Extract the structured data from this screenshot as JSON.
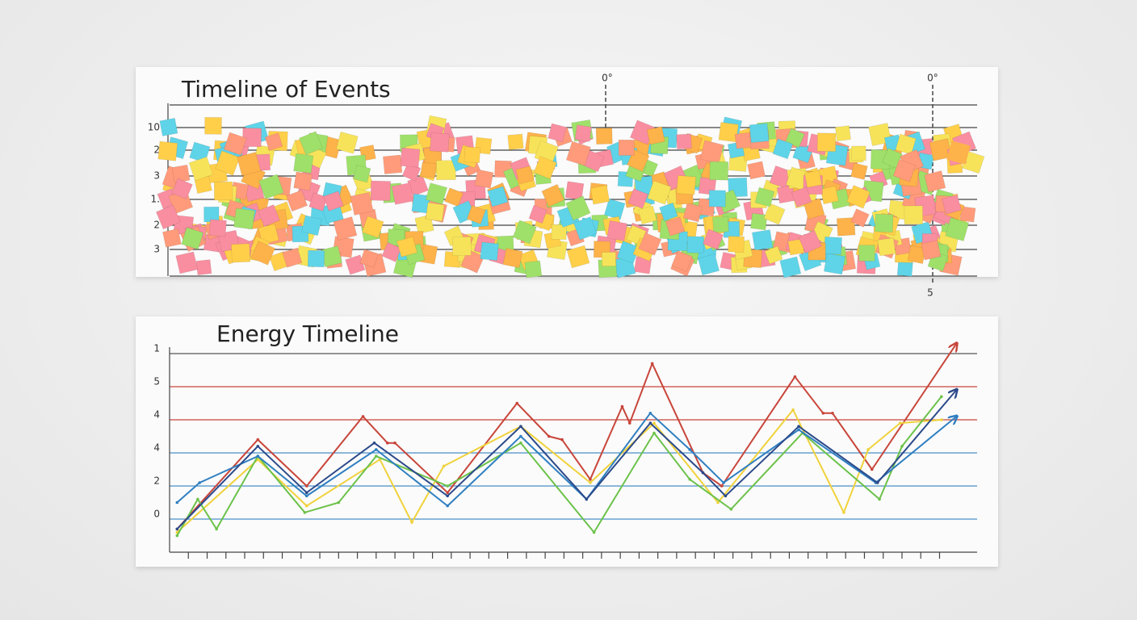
{
  "chart_data": [
    {
      "type": "notes",
      "title": "Timeline of Events",
      "y_labels": [
        "10",
        "2",
        "3",
        "1.",
        "2",
        "3"
      ],
      "annotations": [
        "0°",
        "0°",
        "5"
      ]
    },
    {
      "type": "line",
      "title": "Energy Timeline",
      "xlim": [
        -1,
        42
      ],
      "ylim": [
        -1,
        5.5
      ],
      "xticks": [
        0,
        1,
        2,
        3,
        4,
        5,
        6,
        7,
        8,
        9,
        10,
        11,
        12,
        13,
        14,
        15,
        16,
        17,
        18,
        19,
        20,
        21,
        22,
        23,
        24,
        25,
        26,
        27,
        28,
        29,
        30,
        31,
        32,
        33,
        34,
        35,
        36,
        37,
        38,
        39,
        40
      ],
      "yticks": [
        {
          "value": 0,
          "label": "0"
        },
        {
          "value": 1,
          "label": "2"
        },
        {
          "value": 2,
          "label": "4"
        },
        {
          "value": 3,
          "label": "4"
        },
        {
          "value": 4,
          "label": "5"
        },
        {
          "value": 5,
          "label": "1"
        }
      ],
      "grid": true,
      "grid_colors": [
        "#4a90c8",
        "#4a90c8",
        "#4a90c8",
        "#c8453a",
        "#c8453a",
        "#555555"
      ],
      "series": [
        {
          "color": "#c8453a",
          "arrow": true,
          "x": [
            -0.6,
            3.7,
            6.3,
            9.3,
            10.6,
            11.0,
            13.8,
            17.5,
            19.2,
            19.9,
            21.4,
            23.1,
            23.5,
            24.7,
            27.4,
            28.4,
            32.3,
            33.8,
            34.3,
            36.4,
            40.9
          ],
          "values": [
            -0.3,
            2.4,
            1.0,
            3.1,
            2.3,
            2.3,
            0.8,
            3.5,
            2.5,
            2.4,
            1.2,
            3.4,
            2.9,
            4.7,
            1.4,
            1.0,
            4.3,
            3.2,
            3.2,
            1.5,
            5.3
          ]
        },
        {
          "color": "#f0d23c",
          "arrow": false,
          "x": [
            -0.6,
            3.7,
            6.3,
            10.2,
            11.9,
            13.6,
            17.7,
            21.4,
            24.8,
            28.2,
            32.2,
            34.9,
            36.2,
            37.9,
            40.1
          ],
          "values": [
            -0.4,
            1.8,
            0.4,
            1.8,
            -0.1,
            1.6,
            2.8,
            1.1,
            2.9,
            0.5,
            3.3,
            0.2,
            2.1,
            2.9,
            3.0
          ]
        },
        {
          "color": "#6cc24a",
          "arrow": false,
          "x": [
            -0.6,
            0.5,
            1.5,
            3.7,
            6.2,
            8.0,
            10.0,
            13.8,
            17.7,
            21.6,
            24.8,
            26.7,
            28.9,
            32.7,
            36.8,
            38.0,
            40.1
          ],
          "values": [
            -0.5,
            0.6,
            -0.3,
            1.9,
            0.2,
            0.5,
            1.9,
            1.0,
            2.3,
            -0.4,
            2.6,
            1.2,
            0.3,
            2.6,
            0.6,
            2.2,
            3.7
          ]
        },
        {
          "color": "#2f7fc1",
          "arrow": true,
          "x": [
            -0.6,
            0.6,
            3.7,
            6.3,
            10.0,
            13.8,
            17.7,
            21.2,
            24.6,
            26.7,
            28.5,
            32.5,
            36.6,
            40.9
          ],
          "values": [
            0.5,
            1.1,
            1.9,
            0.7,
            2.1,
            0.4,
            2.5,
            0.6,
            3.2,
            2.1,
            1.1,
            2.7,
            1.1,
            3.1
          ]
        },
        {
          "color": "#2c4a8a",
          "arrow": true,
          "x": [
            -0.6,
            3.7,
            6.3,
            9.9,
            13.8,
            17.7,
            21.2,
            24.6,
            27.4,
            28.6,
            32.5,
            36.7,
            40.9
          ],
          "values": [
            -0.3,
            2.2,
            0.8,
            2.3,
            0.7,
            2.8,
            0.6,
            2.9,
            1.4,
            0.7,
            2.8,
            1.1,
            3.9
          ]
        }
      ]
    }
  ]
}
